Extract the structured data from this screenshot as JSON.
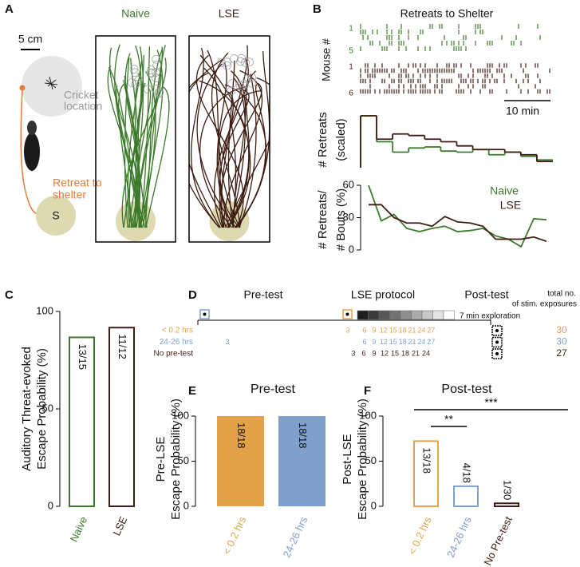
{
  "panel_labels": [
    "A",
    "B",
    "C",
    "D",
    "E",
    "F"
  ],
  "panel_a": {
    "scale_bar": "5 cm",
    "cricket_label": [
      "Cricket",
      "location"
    ],
    "retreat_label": [
      "Retreat to",
      "shelter"
    ],
    "shelter": "S",
    "arenas": [
      {
        "title": "Naive",
        "color": "#3b7a2a"
      },
      {
        "title": "LSE",
        "color": "#3d1c12"
      }
    ]
  },
  "panel_b": {
    "title": "Retreats to Shelter",
    "raster_ylabel": "Mouse #",
    "raster_row_labels": [
      "1",
      "5",
      "1",
      "6"
    ],
    "scale_bar": "10 min"
  },
  "panel_d": {
    "headers": [
      "Pre-test",
      "LSE protocol",
      "Post-test"
    ],
    "total_header": [
      "total no.",
      "of stim. exposures"
    ],
    "exploration": "7 min exploration",
    "rows": [
      {
        "label": "< 0.2 hrs",
        "color": "#e3a24a",
        "numbers": [
          3,
          6,
          9,
          12,
          15,
          18,
          21,
          24,
          27
        ],
        "total": 30
      },
      {
        "label": "24-26 hrs",
        "color": "#7f9fcc",
        "numbers": [
          3,
          6,
          9,
          12,
          15,
          18,
          21,
          24,
          27
        ],
        "total": 30
      },
      {
        "label": "No pre-test",
        "color": "#3d1c12",
        "numbers": [
          3,
          6,
          9,
          12,
          15,
          18,
          21,
          24
        ],
        "total": 27
      }
    ]
  },
  "chart_data": [
    {
      "type": "step",
      "ylabel": [
        "# Retreats",
        "(scaled)"
      ],
      "ylim": [
        0,
        1
      ],
      "series": [
        {
          "name": "Naive",
          "color": "#3b7a2a",
          "values": [
            1.0,
            0.5,
            0.3,
            0.38,
            0.4,
            0.32,
            0.3,
            0.35,
            0.25,
            0.3,
            0.22,
            0.15
          ]
        },
        {
          "name": "LSE",
          "color": "#3d1c12",
          "values": [
            1.0,
            0.55,
            0.65,
            0.62,
            0.55,
            0.5,
            0.42,
            0.35,
            0.35,
            0.3,
            0.25,
            0.12
          ]
        }
      ]
    },
    {
      "type": "line",
      "ylabel": [
        "# Retreats/",
        "# Bouts (%)"
      ],
      "ylim": [
        0,
        60
      ],
      "yticks": [
        0,
        30,
        60
      ],
      "series": [
        {
          "name": "Naive",
          "color": "#3b7a2a",
          "values": [
            60,
            27,
            33,
            20,
            17,
            20,
            22,
            17,
            18,
            20,
            13,
            10,
            3,
            29,
            28
          ]
        },
        {
          "name": "LSE",
          "color": "#3d1c12",
          "values": [
            42,
            42,
            30,
            25,
            25,
            22,
            31,
            26,
            25,
            22,
            10,
            10,
            10,
            12,
            8
          ]
        }
      ]
    },
    {
      "type": "bar",
      "style": "outline",
      "ylabel": [
        "Auditory Threat-evoked",
        "Escape Probability (%)"
      ],
      "ylim": [
        0,
        100
      ],
      "yticks": [
        0,
        50,
        100
      ],
      "categories": [
        "Naive",
        "LSE"
      ],
      "colors": [
        "#3b7a2a",
        "#3d1c12"
      ],
      "values": [
        86.7,
        91.7
      ],
      "value_labels": [
        "13/15",
        "11/12"
      ]
    },
    {
      "type": "bar",
      "style": "solid",
      "title": "Pre-test",
      "ylabel": [
        "Pre-LSE",
        "Escape Probability (%)"
      ],
      "ylim": [
        0,
        100
      ],
      "yticks": [
        0,
        50,
        100
      ],
      "categories": [
        "< 0.2 hrs",
        "24-26 hrs"
      ],
      "colors": [
        "#e3a24a",
        "#7f9fcc"
      ],
      "values": [
        100,
        100
      ],
      "value_labels": [
        "18/18",
        "18/18"
      ]
    },
    {
      "type": "bar",
      "style": "outline",
      "title": "Post-test",
      "ylabel": [
        "Post-LSE",
        "Escape Probability (%)"
      ],
      "ylim": [
        0,
        100
      ],
      "yticks": [
        0,
        50,
        100
      ],
      "categories": [
        "< 0.2 hrs",
        "24-26 hrs",
        "No Pre-test"
      ],
      "colors": [
        "#e3a24a",
        "#7f9fcc",
        "#3d1c12"
      ],
      "values": [
        72.2,
        22.2,
        3.3
      ],
      "value_labels": [
        "13/18",
        "4/18",
        "1/30"
      ],
      "significance": [
        "**",
        "***"
      ]
    }
  ]
}
